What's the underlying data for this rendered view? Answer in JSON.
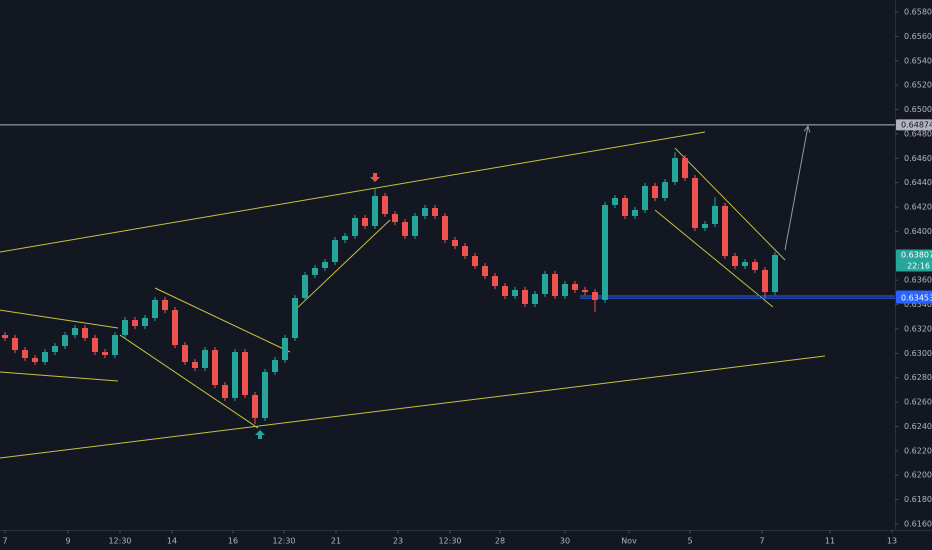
{
  "chart_data": {
    "type": "candlestick",
    "up_color": "#26a69a",
    "down_color": "#ef5350",
    "xlim": [
      -0.5,
      89
    ],
    "ylim": [
      0.616,
      0.658
    ],
    "yticks": [
      {
        "value": 0.616,
        "label": "0.61600"
      },
      {
        "value": 0.618,
        "label": "0.61800"
      },
      {
        "value": 0.62,
        "label": "0.62000"
      },
      {
        "value": 0.622,
        "label": "0.62200"
      },
      {
        "value": 0.624,
        "label": "0.62400"
      },
      {
        "value": 0.626,
        "label": "0.62600"
      },
      {
        "value": 0.628,
        "label": "0.62800"
      },
      {
        "value": 0.63,
        "label": "0.63000"
      },
      {
        "value": 0.632,
        "label": "0.63200"
      },
      {
        "value": 0.634,
        "label": "0.63400"
      },
      {
        "value": 0.636,
        "label": "0.63600"
      },
      {
        "value": 0.638,
        "label": "0.63800"
      },
      {
        "value": 0.64,
        "label": "0.64000"
      },
      {
        "value": 0.642,
        "label": "0.64200"
      },
      {
        "value": 0.644,
        "label": "0.64400"
      },
      {
        "value": 0.646,
        "label": "0.64600"
      },
      {
        "value": 0.648,
        "label": "0.64800"
      },
      {
        "value": 0.65,
        "label": "0.65000"
      },
      {
        "value": 0.652,
        "label": "0.65200"
      },
      {
        "value": 0.654,
        "label": "0.65400"
      },
      {
        "value": 0.656,
        "label": "0.65600"
      },
      {
        "value": 0.658,
        "label": "0.65800"
      }
    ],
    "xticks": [
      {
        "value": 0,
        "label": "7"
      },
      {
        "value": 6.3,
        "label": "9"
      },
      {
        "value": 11.5,
        "label": "12:30"
      },
      {
        "value": 16.7,
        "label": "14"
      },
      {
        "value": 22.8,
        "label": "16"
      },
      {
        "value": 27.9,
        "label": "12:30"
      },
      {
        "value": 33.1,
        "label": "21"
      },
      {
        "value": 39.3,
        "label": "23"
      },
      {
        "value": 44.5,
        "label": "12:30"
      },
      {
        "value": 49.5,
        "label": "28"
      },
      {
        "value": 56,
        "label": "30"
      },
      {
        "value": 62.4,
        "label": "Nov"
      },
      {
        "value": 68.5,
        "label": "5"
      },
      {
        "value": 75.7,
        "label": "7"
      },
      {
        "value": 82.5,
        "label": "11"
      },
      {
        "value": 88.7,
        "label": "13"
      }
    ],
    "open": [
      0.6315,
      0.63126,
      0.63027,
      0.62962,
      0.62929,
      0.63011,
      0.6306,
      0.6315,
      0.63208,
      0.63126,
      0.63011,
      0.62986,
      0.6315,
      0.63273,
      0.63224,
      0.6329,
      0.63438,
      0.63355,
      0.63068,
      0.62929,
      0.6288,
      0.63027,
      0.6274,
      0.62634,
      0.63011,
      0.62658,
      0.6247,
      0.62847,
      0.62945,
      0.63126,
      0.63454,
      0.63643,
      0.637,
      0.63749,
      0.6393,
      0.63963,
      0.6411,
      0.64045,
      0.64291,
      0.64143,
      0.64077,
      0.63963,
      0.64127,
      0.64192,
      0.64127,
      0.6393,
      0.6388,
      0.63798,
      0.63716,
      0.63634,
      0.63552,
      0.6347,
      0.6352,
      0.63405,
      0.63487,
      0.63651,
      0.6347,
      0.63569,
      0.6352,
      0.63503,
      0.63438,
      0.64217,
      0.64274,
      0.64127,
      0.64176,
      0.64373,
      0.64274,
      0.64405,
      0.64602,
      0.64438,
      0.64028,
      0.64061,
      0.64209,
      0.63798,
      0.63716,
      0.63749,
      0.63684,
      0.63503
    ],
    "high": [
      0.63175,
      0.63151,
      0.63052,
      0.62987,
      0.63036,
      0.63085,
      0.63175,
      0.63233,
      0.63233,
      0.63151,
      0.63036,
      0.63175,
      0.63298,
      0.63298,
      0.63315,
      0.63463,
      0.63463,
      0.6338,
      0.63093,
      0.62954,
      0.63052,
      0.63052,
      0.62765,
      0.63036,
      0.63036,
      0.62683,
      0.62872,
      0.6297,
      0.63151,
      0.63479,
      0.63668,
      0.63725,
      0.63774,
      0.63955,
      0.63988,
      0.64135,
      0.64135,
      0.6435,
      0.64316,
      0.64168,
      0.64102,
      0.64152,
      0.64217,
      0.64217,
      0.64152,
      0.63955,
      0.63905,
      0.63823,
      0.63741,
      0.63659,
      0.63577,
      0.63545,
      0.63545,
      0.63512,
      0.63676,
      0.63676,
      0.63594,
      0.63594,
      0.63545,
      0.63528,
      0.64242,
      0.64299,
      0.64299,
      0.64201,
      0.64398,
      0.64398,
      0.6443,
      0.6465,
      0.64627,
      0.64463,
      0.64086,
      0.6428,
      0.64234,
      0.63823,
      0.63774,
      0.63774,
      0.63709,
      0.63832
    ],
    "low": [
      0.63101,
      0.63002,
      0.62937,
      0.62904,
      0.62904,
      0.62986,
      0.63035,
      0.63125,
      0.63101,
      0.62986,
      0.62961,
      0.62961,
      0.63125,
      0.63199,
      0.63199,
      0.63265,
      0.6333,
      0.63043,
      0.62904,
      0.62855,
      0.62855,
      0.62715,
      0.62609,
      0.62609,
      0.62633,
      0.6242,
      0.62445,
      0.62822,
      0.6292,
      0.63101,
      0.63429,
      0.63618,
      0.63675,
      0.63724,
      0.63905,
      0.63938,
      0.6402,
      0.6402,
      0.64118,
      0.64052,
      0.63938,
      0.63938,
      0.64102,
      0.64102,
      0.63905,
      0.63855,
      0.63773,
      0.63691,
      0.63609,
      0.63527,
      0.63445,
      0.63445,
      0.6338,
      0.6338,
      0.63462,
      0.63445,
      0.63445,
      0.63495,
      0.63478,
      0.6334,
      0.63413,
      0.64192,
      0.64102,
      0.64102,
      0.64151,
      0.64249,
      0.64249,
      0.6438,
      0.64413,
      0.64003,
      0.64003,
      0.64036,
      0.63773,
      0.63691,
      0.63691,
      0.63659,
      0.63453,
      0.63478
    ],
    "close": [
      0.63126,
      0.63027,
      0.62962,
      0.62929,
      0.63011,
      0.6306,
      0.6315,
      0.63208,
      0.63126,
      0.63011,
      0.62986,
      0.6315,
      0.63273,
      0.63224,
      0.6329,
      0.63438,
      0.63355,
      0.63068,
      0.62929,
      0.6288,
      0.63027,
      0.6274,
      0.62634,
      0.63011,
      0.62658,
      0.6247,
      0.62847,
      0.62945,
      0.63126,
      0.63454,
      0.63643,
      0.637,
      0.63749,
      0.6393,
      0.63963,
      0.6411,
      0.64045,
      0.64291,
      0.64143,
      0.64077,
      0.63963,
      0.64127,
      0.64192,
      0.64127,
      0.6393,
      0.6388,
      0.63798,
      0.63716,
      0.63634,
      0.63552,
      0.6347,
      0.6352,
      0.63405,
      0.63487,
      0.63651,
      0.6347,
      0.63569,
      0.6352,
      0.63503,
      0.63438,
      0.64217,
      0.64274,
      0.64127,
      0.64176,
      0.64373,
      0.64274,
      0.64405,
      0.64602,
      0.64438,
      0.64028,
      0.64061,
      0.64209,
      0.63798,
      0.63716,
      0.63749,
      0.63684,
      0.63503,
      0.63807
    ],
    "drawings": [
      {
        "x": [
          -0.5,
          70
        ],
        "y": [
          0.63831,
          0.64816
        ],
        "color": "#c9c23f"
      },
      {
        "x": [
          -0.5,
          82
        ],
        "y": [
          0.62141,
          0.62978
        ],
        "color": "#c9c23f"
      },
      {
        "x": [
          -0.5,
          11.3
        ],
        "y": [
          0.63355,
          0.63208
        ],
        "color": "#c9c23f"
      },
      {
        "x": [
          -0.5,
          11.3
        ],
        "y": [
          0.62847,
          0.62773
        ],
        "color": "#c9c23f"
      },
      {
        "x": [
          15,
          28.5
        ],
        "y": [
          0.63536,
          0.63011
        ],
        "color": "#c9c23f"
      },
      {
        "x": [
          11.5,
          25.3
        ],
        "y": [
          0.6315,
          0.62387
        ],
        "color": "#c9c23f"
      },
      {
        "x": [
          29,
          38.5
        ],
        "y": [
          0.63355,
          0.64094
        ],
        "color": "#c9c23f"
      },
      {
        "x": [
          67,
          78
        ],
        "y": [
          0.64684,
          0.63766
        ],
        "color": "#c9c23f"
      },
      {
        "x": [
          65,
          76.8
        ],
        "y": [
          0.64176,
          0.6338
        ],
        "color": "#c9c23f"
      },
      {
        "x": [
          57.5,
          89
        ],
        "y": [
          0.6347,
          0.6347
        ],
        "color": "#2962ff"
      },
      {
        "x": [
          57.5,
          89
        ],
        "y": [
          0.63453,
          0.63453
        ],
        "color": "#2962ff"
      },
      {
        "x": [
          -0.5,
          89
        ],
        "y": [
          0.64874,
          0.64874
        ],
        "color": "#b2b5be"
      }
    ],
    "arrow": {
      "x": [
        78,
        80.3
      ],
      "y": [
        0.63848,
        0.64864
      ],
      "color": "#9598a1"
    },
    "markers": [
      {
        "x": 37,
        "y": 0.64422,
        "direction": "down",
        "color": "#ef5350"
      },
      {
        "x": 25.5,
        "y": 0.62355,
        "direction": "up",
        "color": "#26a69a"
      }
    ],
    "price_labels": [
      {
        "value": 0.64874,
        "label": "0.64874",
        "color": "#b2b5be",
        "text_color": "#131722"
      },
      {
        "value": 0.63807,
        "label": "0.63807",
        "countdown": "22:16",
        "color": "#26a69a",
        "text_color": "#ffffff"
      },
      {
        "value": 0.6347,
        "label": "0.63470",
        "color": "#2962ff",
        "text_color": "#ffffff"
      },
      {
        "value": 0.63453,
        "label": "0.63453",
        "color": "#2962ff",
        "text_color": "#ffffff"
      }
    ]
  }
}
